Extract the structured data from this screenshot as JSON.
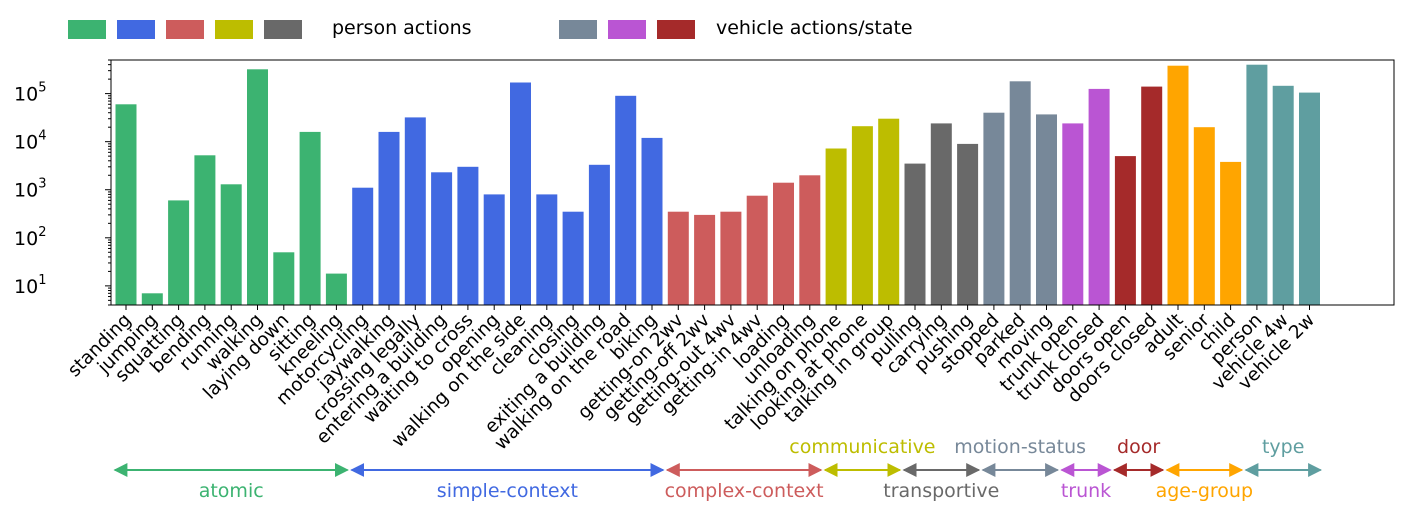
{
  "legend": {
    "person_label": "person actions",
    "vehicle_label": "vehicle actions/state",
    "person_colors": [
      "#3CB371",
      "#4169E1",
      "#CD5C5C",
      "#BDBD00",
      "#696969"
    ],
    "vehicle_colors": [
      "#778899",
      "#BA55D3",
      "#A52A2A"
    ]
  },
  "chart_data": {
    "type": "bar",
    "y_scale": "log",
    "ylim": [
      4,
      500000
    ],
    "y_ticks": [
      {
        "base": "10",
        "exp": "1",
        "value": 10
      },
      {
        "base": "10",
        "exp": "2",
        "value": 100
      },
      {
        "base": "10",
        "exp": "3",
        "value": 1000
      },
      {
        "base": "10",
        "exp": "4",
        "value": 10000
      },
      {
        "base": "10",
        "exp": "5",
        "value": 100000
      }
    ],
    "categories": [
      "standing",
      "jumping",
      "squatting",
      "bending",
      "running",
      "walking",
      "laying down",
      "sitting",
      "kneeling",
      "motorcycling",
      "jaywalking",
      "crossing legally",
      "entering a building",
      "waiting to cross",
      "opening",
      "walking on the side",
      "cleaning",
      "closing",
      "exiting a building",
      "walking on the road",
      "biking",
      "getting-on 2wv",
      "getting-off 2wv",
      "getting-out 4wv",
      "getting-in 4wv",
      "loading",
      "unloading",
      "talking on phone",
      "looking at phone",
      "talking in group",
      "pulling",
      "carrying",
      "pushing",
      "stopped",
      "parked",
      "moving",
      "trunk open",
      "trunk closed",
      "doors open",
      "doors closed",
      "adult",
      "senior",
      "child",
      "person",
      "vehicle 4w",
      "vehicle 2w"
    ],
    "values": [
      60000,
      7,
      600,
      5200,
      1300,
      320000,
      50,
      16000,
      18,
      1100,
      16000,
      32000,
      2300,
      3000,
      800,
      170000,
      800,
      350,
      3300,
      90000,
      12000,
      350,
      300,
      350,
      750,
      1400,
      2000,
      7200,
      21000,
      30000,
      3500,
      24000,
      9000,
      40000,
      180000,
      37000,
      24000,
      125000,
      5000,
      140000,
      380000,
      20000,
      3800,
      400000,
      145000,
      105000
    ],
    "bar_groups": [
      0,
      0,
      0,
      0,
      0,
      0,
      0,
      0,
      0,
      1,
      1,
      1,
      1,
      1,
      1,
      1,
      1,
      1,
      1,
      1,
      1,
      2,
      2,
      2,
      2,
      2,
      2,
      3,
      3,
      3,
      4,
      4,
      4,
      5,
      5,
      5,
      6,
      6,
      7,
      7,
      8,
      8,
      8,
      9,
      9,
      9
    ],
    "group_colors": [
      "#3CB371",
      "#4169E1",
      "#CD5C5C",
      "#BDBD00",
      "#696969",
      "#778899",
      "#BA55D3",
      "#A52A2A",
      "#FFA500",
      "#5F9EA0"
    ],
    "groups": [
      {
        "label": "atomic",
        "color": "#3CB371",
        "pos": "below"
      },
      {
        "label": "simple-context",
        "color": "#4169E1",
        "pos": "below"
      },
      {
        "label": "complex-context",
        "color": "#CD5C5C",
        "pos": "below"
      },
      {
        "label": "communicative",
        "color": "#BDBD00",
        "pos": "above"
      },
      {
        "label": "transportive",
        "color": "#696969",
        "pos": "below"
      },
      {
        "label": "motion-status",
        "color": "#778899",
        "pos": "above"
      },
      {
        "label": "trunk",
        "color": "#BA55D3",
        "pos": "below"
      },
      {
        "label": "door",
        "color": "#A52A2A",
        "pos": "above"
      },
      {
        "label": "age-group",
        "color": "#FFA500",
        "pos": "below"
      },
      {
        "label": "type",
        "color": "#5F9EA0",
        "pos": "above"
      }
    ]
  }
}
